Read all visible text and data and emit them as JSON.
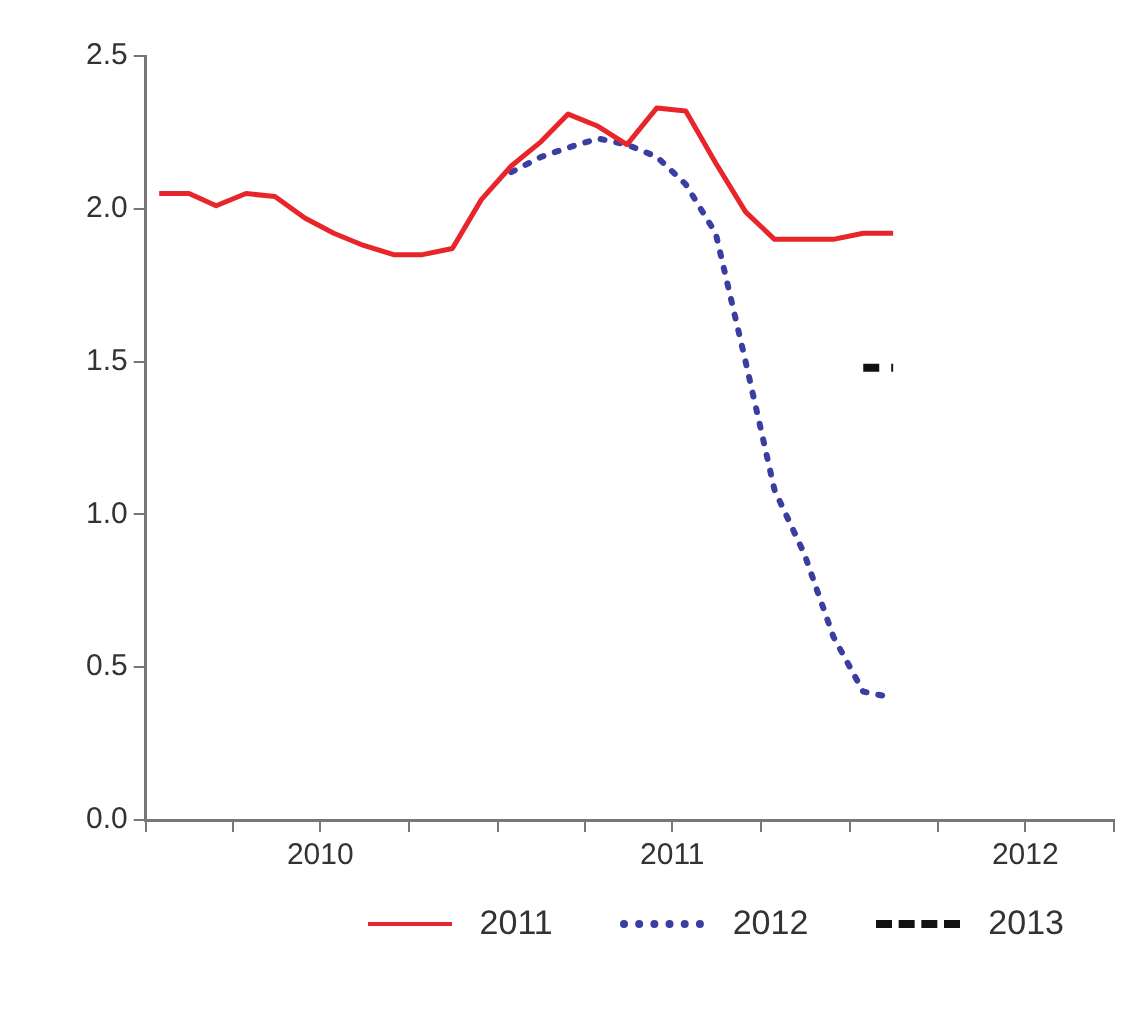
{
  "chart_data": {
    "type": "line",
    "x": [
      "2010-01-15",
      "2010-02-15",
      "2010-03-15",
      "2010-04-15",
      "2010-05-15",
      "2010-06-15",
      "2010-07-15",
      "2010-08-15",
      "2010-09-15",
      "2010-10-15",
      "2010-11-15",
      "2010-12-15",
      "2011-01-15",
      "2011-02-15",
      "2011-03-15",
      "2011-04-15",
      "2011-05-15",
      "2011-06-15",
      "2011-07-15",
      "2011-08-15",
      "2011-09-15",
      "2011-10-15",
      "2011-11-15",
      "2011-12-15",
      "2012-01-15",
      "2012-02-15"
    ],
    "series": [
      {
        "name": "2011",
        "color": "#e8252b",
        "line_style": "solid",
        "values": [
          2.05,
          2.05,
          2.01,
          2.05,
          2.04,
          1.97,
          1.92,
          1.88,
          1.85,
          1.85,
          1.87,
          2.03,
          2.14,
          2.22,
          2.31,
          2.27,
          2.21,
          2.33,
          2.32,
          2.15,
          1.99,
          1.9,
          1.9,
          1.9,
          1.92,
          1.92
        ]
      },
      {
        "name": "2012",
        "color": "#3a3ea0",
        "line_style": "dotted",
        "values": [
          null,
          null,
          null,
          null,
          null,
          null,
          null,
          null,
          null,
          null,
          null,
          null,
          2.12,
          2.17,
          2.2,
          2.23,
          2.21,
          2.17,
          2.08,
          1.92,
          1.5,
          1.08,
          0.87,
          0.6,
          0.42,
          0.4
        ]
      },
      {
        "name": "2013",
        "color": "#111111",
        "line_style": "dashed",
        "x": [
          "2012-01-15",
          "2012-02-15"
        ],
        "values": [
          1.48,
          1.48
        ]
      }
    ],
    "xlim": [
      "2010-01-01",
      "2012-10-01"
    ],
    "xticks": [
      {
        "value": "2010-01-01",
        "label": null
      },
      {
        "value": "2010-04-01",
        "label": null
      },
      {
        "value": "2010-07-01",
        "label": "2010"
      },
      {
        "value": "2010-10-01",
        "label": null
      },
      {
        "value": "2011-01-01",
        "label": null
      },
      {
        "value": "2011-04-01",
        "label": null
      },
      {
        "value": "2011-07-01",
        "label": "2011"
      },
      {
        "value": "2011-10-01",
        "label": null
      },
      {
        "value": "2012-01-01",
        "label": null
      },
      {
        "value": "2012-04-01",
        "label": null
      },
      {
        "value": "2012-07-01",
        "label": "2012"
      },
      {
        "value": "2012-10-01",
        "label": null
      }
    ],
    "ylim": [
      0,
      2.5
    ],
    "yticks": [
      {
        "value": 0,
        "label": "0.0"
      },
      {
        "value": 0.5,
        "label": "0.5"
      },
      {
        "value": 1,
        "label": "1.0"
      },
      {
        "value": 1.5,
        "label": "1.5"
      },
      {
        "value": 2,
        "label": "2.0"
      },
      {
        "value": 2.5,
        "label": "2.5"
      }
    ],
    "grid": false,
    "legend": "bottom",
    "marker": "none"
  }
}
